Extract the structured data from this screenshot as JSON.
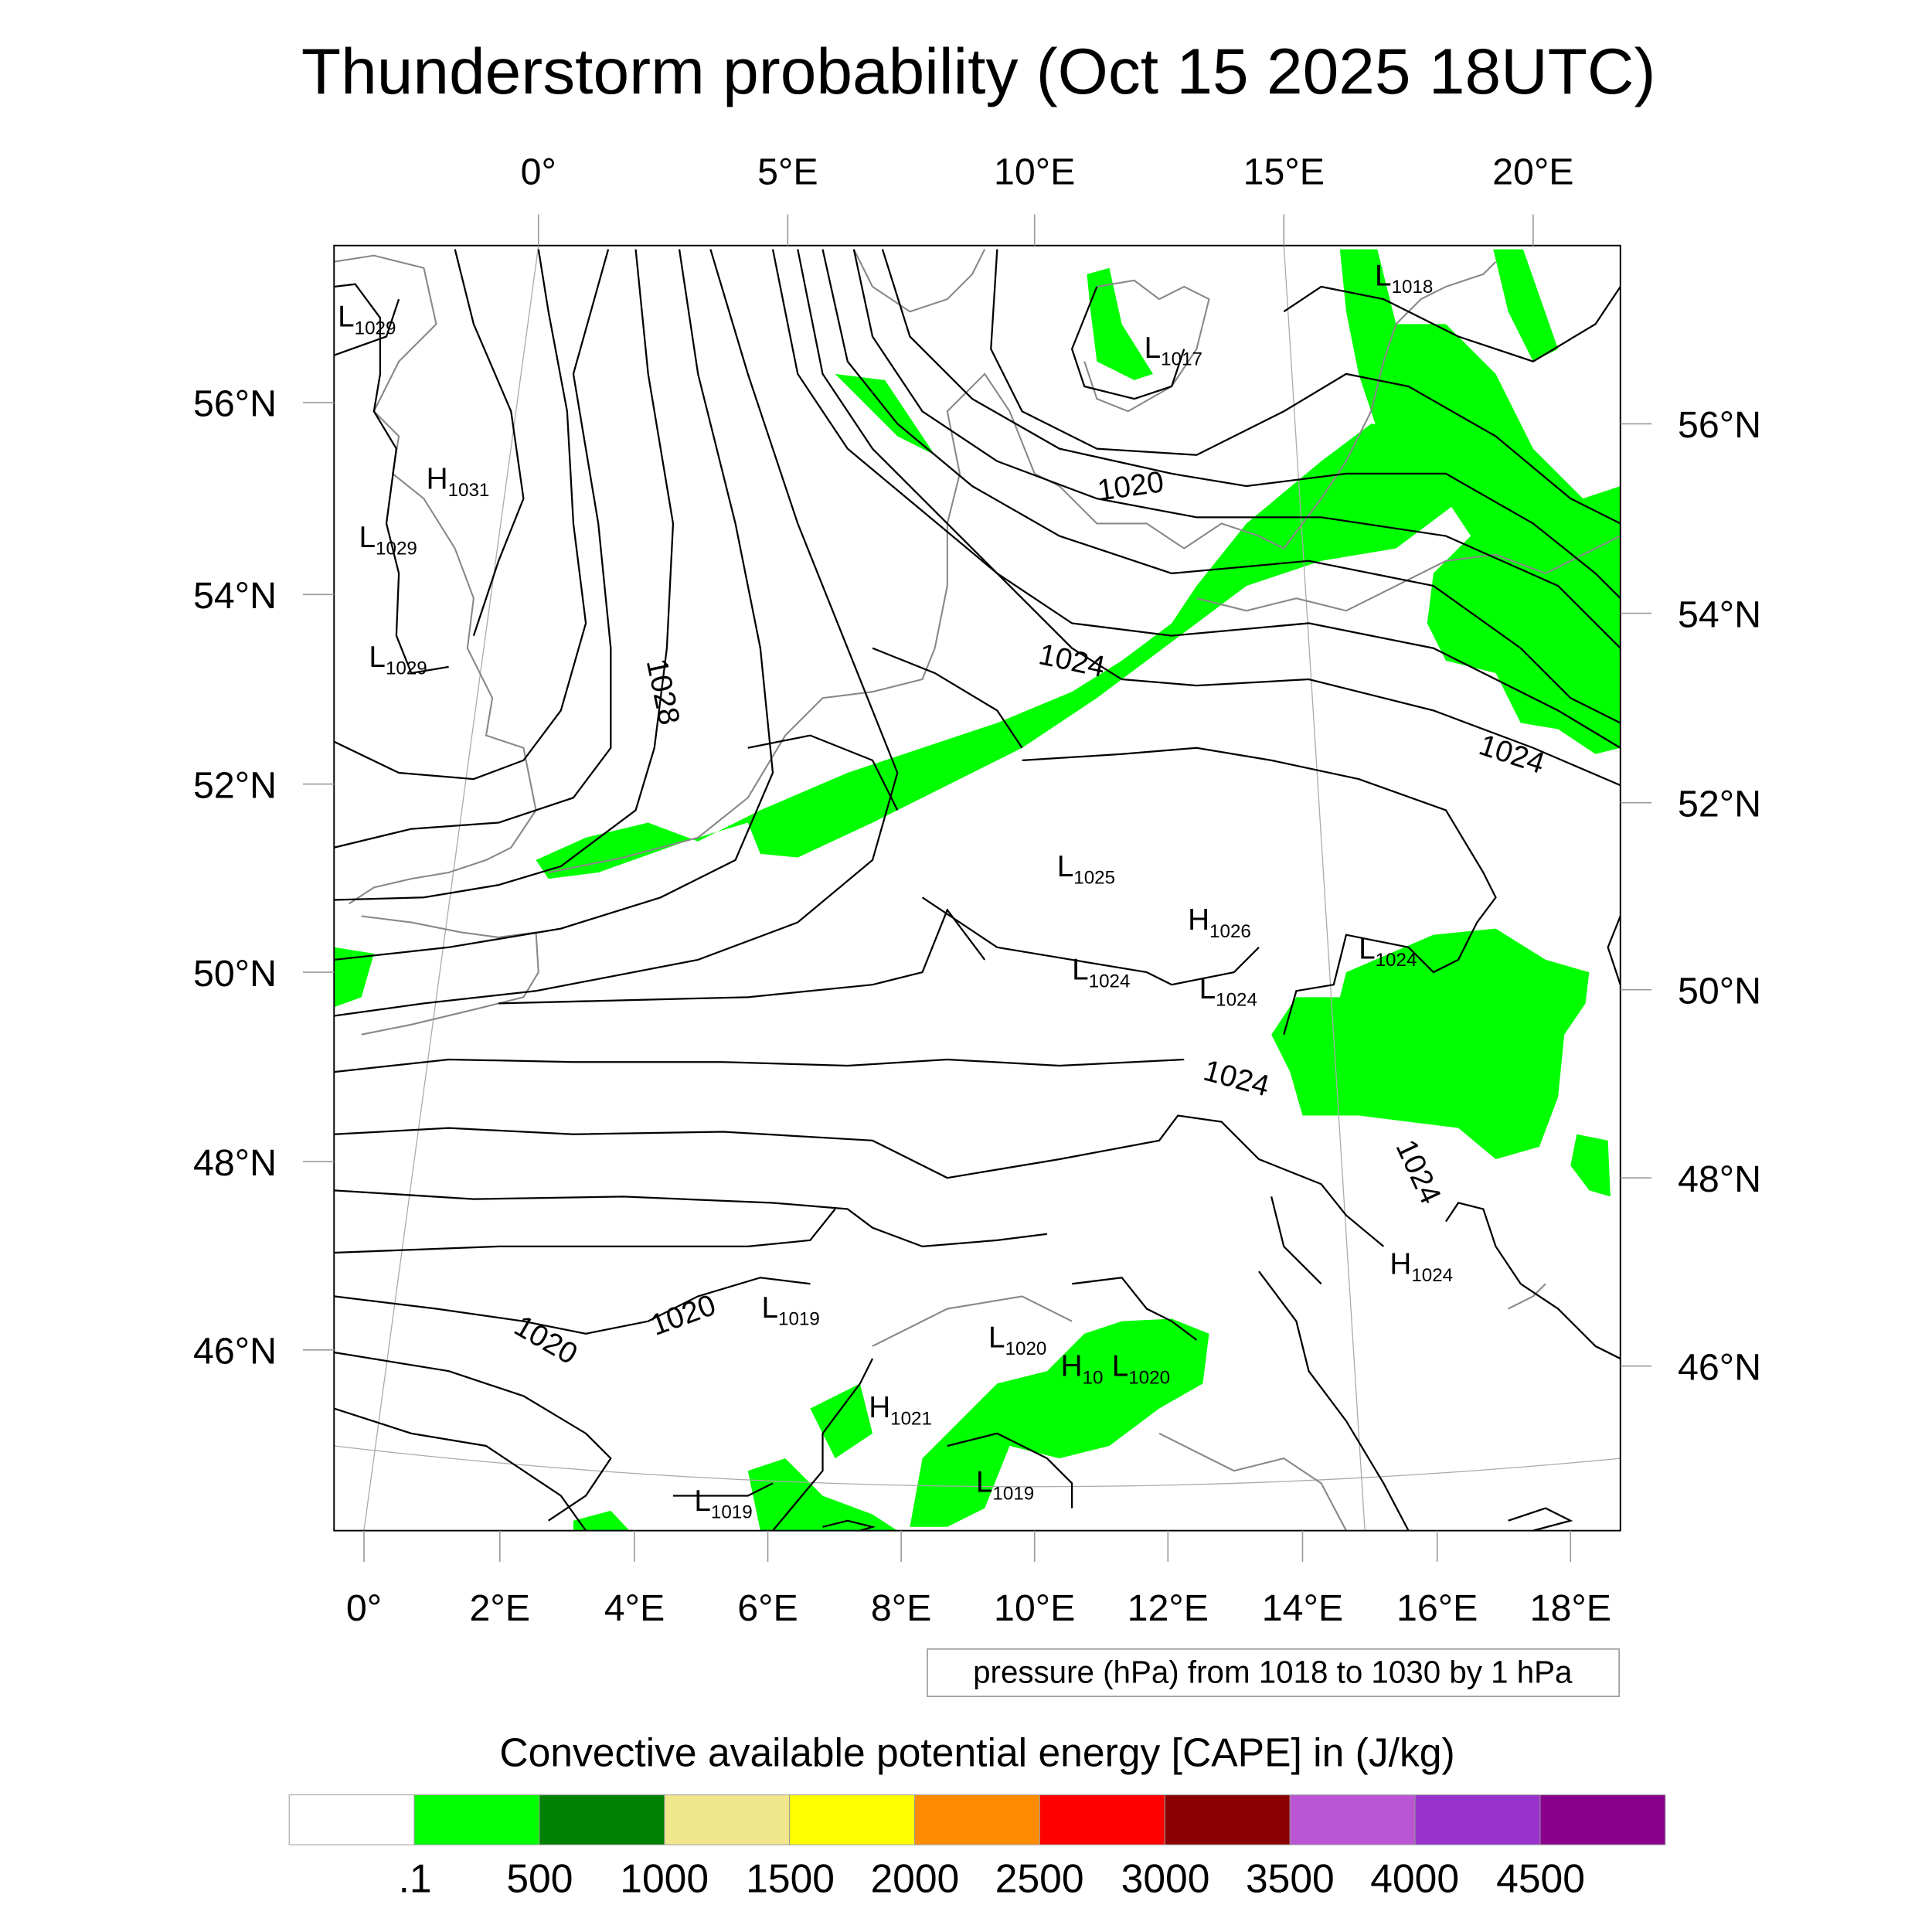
{
  "chart_data": {
    "type": "map-contour",
    "title": "Thunderstorm probability (Oct 15 2025 18UTC)",
    "top_lon_labels": [
      "0°",
      "5°E",
      "10°E",
      "15°E",
      "20°E"
    ],
    "bottom_lon_labels": [
      "0°",
      "2°E",
      "4°E",
      "6°E",
      "8°E",
      "10°E",
      "12°E",
      "14°E",
      "16°E",
      "18°E"
    ],
    "left_lat_labels": [
      "56°N",
      "54°N",
      "52°N",
      "50°N",
      "48°N",
      "46°N"
    ],
    "right_lat_labels": [
      "56°N",
      "54°N",
      "52°N",
      "50°N",
      "48°N",
      "46°N"
    ],
    "contour_info": "pressure (hPa) from 1018 to 1030 by 1 hPa",
    "contour_range": [
      1018,
      1030
    ],
    "contour_interval": 1,
    "contour_line_labels": [
      "1020",
      "1024",
      "1028",
      "1024",
      "1024",
      "1024",
      "1020",
      "1020"
    ],
    "pressure_centers": [
      {
        "type": "L",
        "value": "1029"
      },
      {
        "type": "H",
        "value": "1031"
      },
      {
        "type": "L",
        "value": "1029"
      },
      {
        "type": "L",
        "value": "1029"
      },
      {
        "type": "L",
        "value": "1018"
      },
      {
        "type": "L",
        "value": "1017"
      },
      {
        "type": "L",
        "value": "1025"
      },
      {
        "type": "H",
        "value": "1026"
      },
      {
        "type": "L",
        "value": "1024"
      },
      {
        "type": "L",
        "value": "1024"
      },
      {
        "type": "L",
        "value": "1024"
      },
      {
        "type": "H",
        "value": "1024"
      },
      {
        "type": "L",
        "value": "1019"
      },
      {
        "type": "L",
        "value": "1020"
      },
      {
        "type": "H",
        "value": "10"
      },
      {
        "type": "L",
        "value": "1020"
      },
      {
        "type": "H",
        "value": "1021"
      },
      {
        "type": "L",
        "value": "1019"
      },
      {
        "type": "L",
        "value": "1019"
      }
    ],
    "colorbar": {
      "title": "Convective available potential energy [CAPE] in (J/kg)",
      "labels": [
        ".1",
        "500",
        "1000",
        "1500",
        "2000",
        "2500",
        "3000",
        "3500",
        "4000",
        "4500"
      ],
      "colors": [
        "#ffffff",
        "#00ff00",
        "#008000",
        "#f0e68c",
        "#ffff00",
        "#ff8c00",
        "#ff0000",
        "#8b0000",
        "#ba55d3",
        "#9932cc",
        "#8b008b"
      ]
    }
  }
}
